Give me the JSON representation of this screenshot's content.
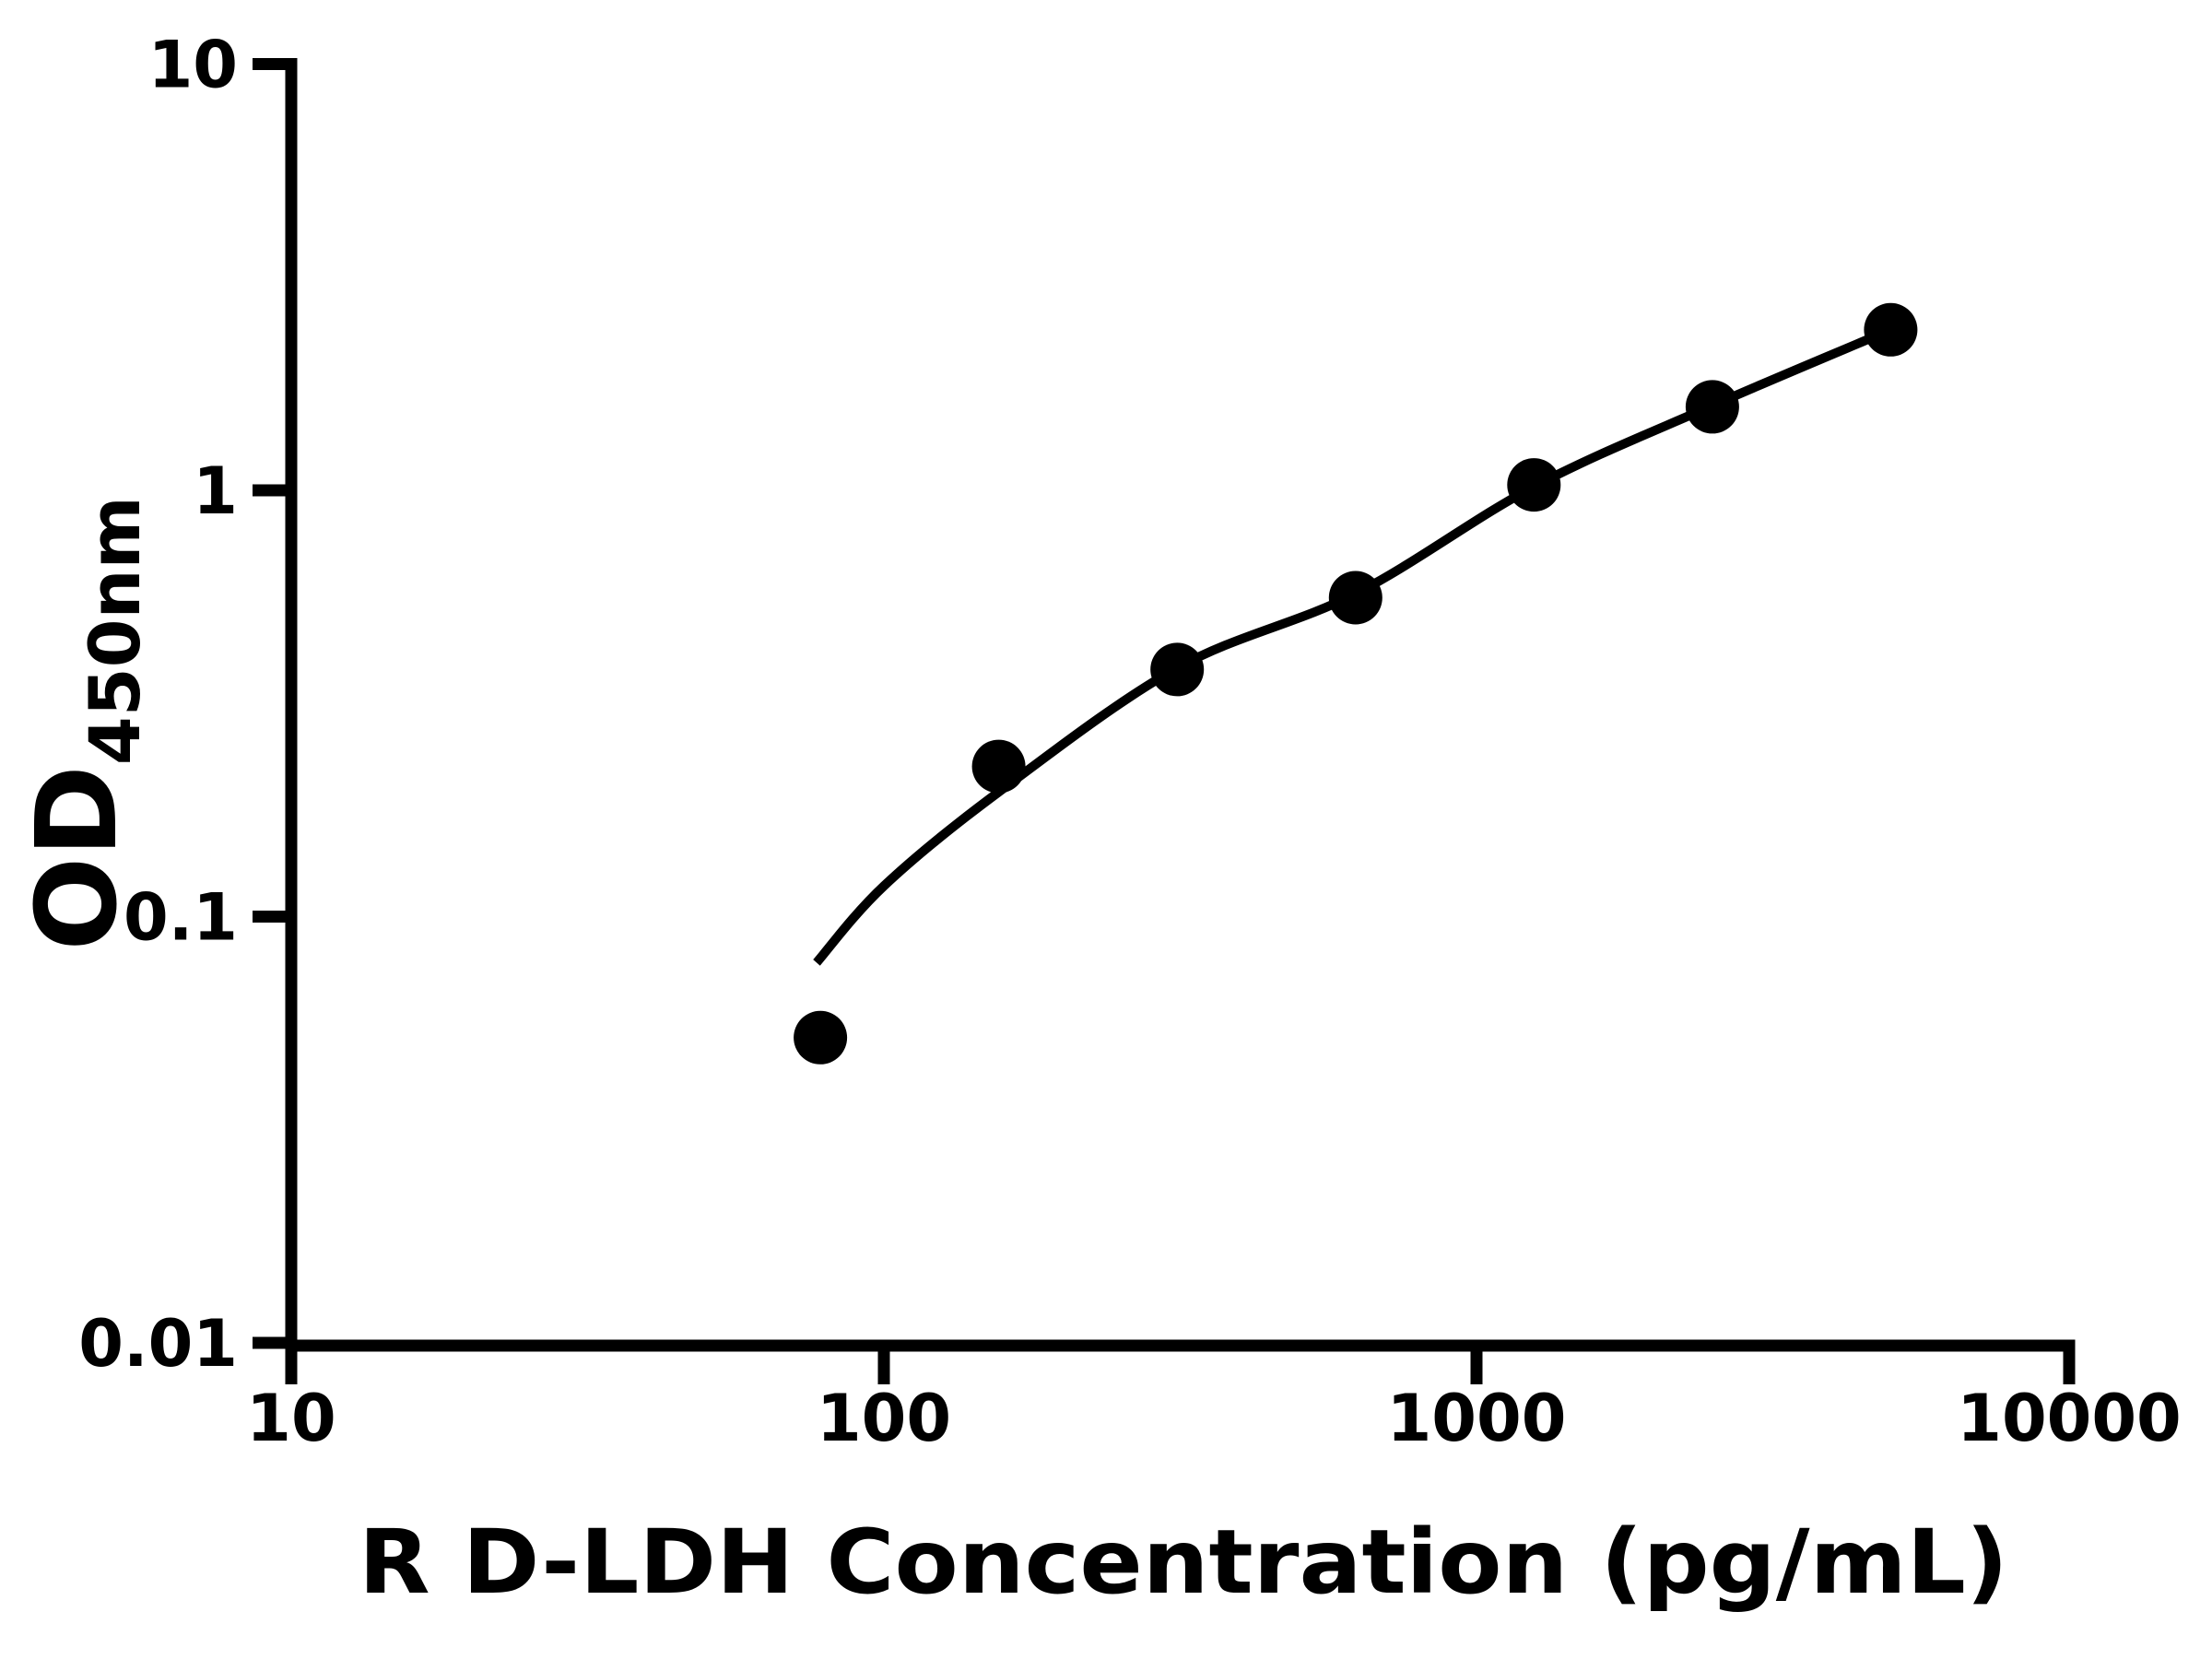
{
  "chart_data": {
    "type": "scatter",
    "title": "",
    "xlabel": "R D-LDH Concentration (pg/mL)",
    "ylabel": "OD450nm",
    "ylabel_parts": {
      "base": "OD",
      "subscript": "450nm"
    },
    "x_scale": "log",
    "y_scale": "log",
    "xlim": [
      10,
      10000
    ],
    "ylim": [
      0.01,
      10
    ],
    "x_ticks": [
      10,
      100,
      1000,
      10000
    ],
    "x_tick_labels": [
      "10",
      "100",
      "1000",
      "10000"
    ],
    "y_ticks": [
      10,
      1,
      0.1,
      0.01
    ],
    "y_tick_labels": [
      "10",
      "1",
      "0.1",
      "0.01"
    ],
    "grid": "off",
    "legend": "none",
    "series": [
      {
        "name": "standard-curve-points",
        "marker": "filled-circle",
        "color": "#000000",
        "points": [
          {
            "x": 78.125,
            "y": 0.052
          },
          {
            "x": 156.25,
            "y": 0.225
          },
          {
            "x": 312.5,
            "y": 0.38
          },
          {
            "x": 625,
            "y": 0.56
          },
          {
            "x": 1250,
            "y": 1.03
          },
          {
            "x": 2500,
            "y": 1.57
          },
          {
            "x": 5000,
            "y": 2.38
          }
        ]
      }
    ],
    "fit_curve": {
      "name": "fitted-curve",
      "color": "#000000",
      "anchors": [
        {
          "x": 77,
          "y": 0.078
        },
        {
          "x": 100,
          "y": 0.118
        },
        {
          "x": 156.25,
          "y": 0.196
        },
        {
          "x": 312.5,
          "y": 0.383
        },
        {
          "x": 625,
          "y": 0.572
        },
        {
          "x": 1250,
          "y": 1.02
        },
        {
          "x": 2500,
          "y": 1.58
        },
        {
          "x": 5000,
          "y": 2.38
        }
      ]
    },
    "colors": {
      "foreground": "#000000",
      "background": "#ffffff"
    }
  }
}
